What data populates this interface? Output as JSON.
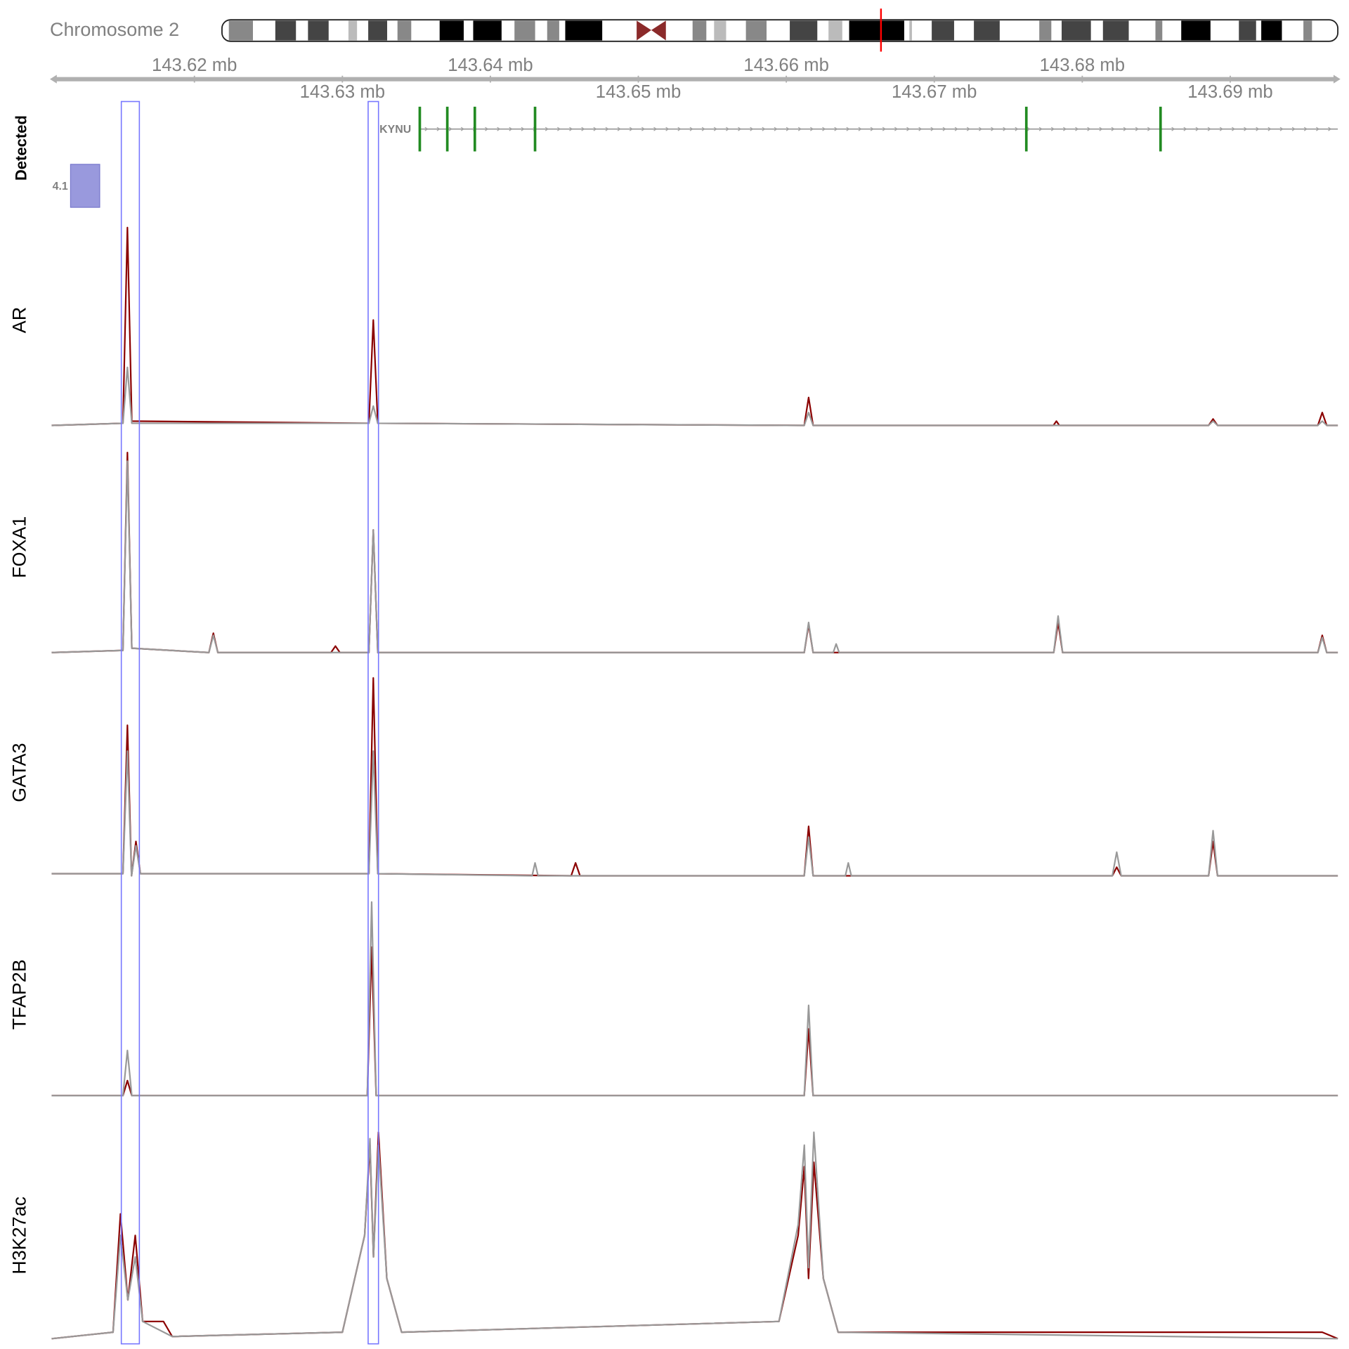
{
  "chromosome": {
    "label": "Chromosome 2"
  },
  "axis": {
    "xlim": [
      143.61035,
      143.69727
    ],
    "xticks": [
      {
        "value": 143.62,
        "label": "143.62 mb"
      },
      {
        "value": 143.63,
        "label": "143.63 mb"
      },
      {
        "value": 143.64,
        "label": "143.64 mb"
      },
      {
        "value": 143.65,
        "label": "143.65 mb"
      },
      {
        "value": 143.66,
        "label": "143.66 mb"
      },
      {
        "value": 143.67,
        "label": "143.67 mb"
      },
      {
        "value": 143.68,
        "label": "143.68 mb"
      },
      {
        "value": 143.69,
        "label": "143.69 mb"
      }
    ]
  },
  "gene_track": {
    "gene": "KYNU",
    "color": "#228b22",
    "exons": [
      143.63523,
      143.63709,
      143.63895,
      143.64302,
      143.67622,
      143.68529
    ]
  },
  "detected_track": {
    "title": "Detected",
    "label": "4.1",
    "color": "#9999dd",
    "region": [
      143.61163,
      143.6136
    ]
  },
  "highlights": [
    [
      143.61506,
      143.61628
    ],
    [
      143.63174,
      143.63244
    ]
  ],
  "chart_data": [
    {
      "type": "line",
      "title": "AR",
      "series": [
        {
          "color": "#8b0000",
          "x": [
            143.61035,
            143.61517,
            143.61547,
            143.61577,
            143.63179,
            143.63209,
            143.63239,
            143.66121,
            143.66151,
            143.66181,
            143.67805,
            143.67825,
            143.67845,
            143.68854,
            143.68884,
            143.68914,
            143.69592,
            143.69622,
            143.69652,
            143.69727
          ],
          "values": [
            0.01,
            0.02,
            0.93,
            0.03,
            0.02,
            0.5,
            0.02,
            0.01,
            0.14,
            0.01,
            0.01,
            0.03,
            0.01,
            0.01,
            0.04,
            0.01,
            0.01,
            0.07,
            0.01,
            0.01
          ]
        },
        {
          "color": "#999999",
          "x": [
            143.61035,
            143.61517,
            143.61547,
            143.61577,
            143.63179,
            143.63209,
            143.63239,
            143.66121,
            143.66151,
            143.66181,
            143.68854,
            143.68884,
            143.68914,
            143.69592,
            143.69622,
            143.69652,
            143.69727
          ],
          "values": [
            0.01,
            0.02,
            0.28,
            0.02,
            0.02,
            0.1,
            0.02,
            0.01,
            0.07,
            0.01,
            0.01,
            0.03,
            0.01,
            0.01,
            0.03,
            0.01,
            0.01
          ]
        }
      ]
    },
    {
      "type": "line",
      "title": "FOXA1",
      "series": [
        {
          "color": "#8b0000",
          "x": [
            143.61035,
            143.61517,
            143.61547,
            143.61577,
            143.62098,
            143.62128,
            143.62158,
            143.62923,
            143.62953,
            143.62983,
            143.63179,
            143.63209,
            143.63239,
            143.66121,
            143.66151,
            143.66181,
            143.67807,
            143.67837,
            143.67867,
            143.69592,
            143.69622,
            143.69652,
            143.69727
          ],
          "values": [
            0.01,
            0.02,
            0.94,
            0.03,
            0.01,
            0.1,
            0.01,
            0.01,
            0.04,
            0.01,
            0.01,
            0.58,
            0.01,
            0.01,
            0.14,
            0.01,
            0.01,
            0.15,
            0.01,
            0.01,
            0.09,
            0.01,
            0.01
          ]
        },
        {
          "color": "#999999",
          "x": [
            143.61035,
            143.61517,
            143.61547,
            143.61577,
            143.62098,
            143.62128,
            143.62158,
            143.63179,
            143.63209,
            143.63239,
            143.66121,
            143.66151,
            143.66181,
            143.66317,
            143.66337,
            143.66357,
            143.67807,
            143.67837,
            143.67867,
            143.69592,
            143.69622,
            143.69652,
            143.69727
          ],
          "values": [
            0.01,
            0.02,
            0.9,
            0.03,
            0.01,
            0.09,
            0.01,
            0.01,
            0.58,
            0.01,
            0.01,
            0.15,
            0.01,
            0.01,
            0.05,
            0.01,
            0.01,
            0.18,
            0.01,
            0.01,
            0.08,
            0.01,
            0.01
          ]
        }
      ]
    },
    {
      "type": "line",
      "title": "GATA3",
      "series": [
        {
          "color": "#8b0000",
          "x": [
            143.61035,
            143.61517,
            143.61547,
            143.61575,
            143.61605,
            143.61635,
            143.63179,
            143.63209,
            143.63239,
            143.64546,
            143.64576,
            143.64606,
            143.66121,
            143.66151,
            143.66181,
            143.68203,
            143.68233,
            143.68263,
            143.68854,
            143.68884,
            143.68914,
            143.69727
          ],
          "values": [
            0.03,
            0.03,
            0.72,
            0.02,
            0.18,
            0.03,
            0.03,
            0.94,
            0.03,
            0.02,
            0.08,
            0.02,
            0.02,
            0.25,
            0.02,
            0.02,
            0.06,
            0.02,
            0.02,
            0.18,
            0.02,
            0.02
          ]
        },
        {
          "color": "#999999",
          "x": [
            143.61035,
            143.61517,
            143.61547,
            143.61575,
            143.61605,
            143.61635,
            143.63179,
            143.63209,
            143.63239,
            143.64282,
            143.64302,
            143.64322,
            143.66121,
            143.66151,
            143.66181,
            143.66399,
            143.66419,
            143.66439,
            143.68203,
            143.68233,
            143.68263,
            143.68854,
            143.68884,
            143.68914,
            143.69727
          ],
          "values": [
            0.03,
            0.03,
            0.6,
            0.02,
            0.16,
            0.03,
            0.03,
            0.6,
            0.03,
            0.02,
            0.08,
            0.02,
            0.02,
            0.2,
            0.02,
            0.02,
            0.08,
            0.02,
            0.02,
            0.13,
            0.02,
            0.02,
            0.23,
            0.02,
            0.02
          ]
        }
      ]
    },
    {
      "type": "line",
      "title": "TFAP2B",
      "series": [
        {
          "color": "#8b0000",
          "x": [
            143.61035,
            143.61517,
            143.61547,
            143.61577,
            143.63168,
            143.63198,
            143.63228,
            143.66121,
            143.66151,
            143.66181,
            143.69727
          ],
          "values": [
            0.03,
            0.03,
            0.1,
            0.03,
            0.03,
            0.72,
            0.03,
            0.03,
            0.34,
            0.03,
            0.03
          ]
        },
        {
          "color": "#999999",
          "x": [
            143.61035,
            143.61517,
            143.61547,
            143.61577,
            143.63168,
            143.63198,
            143.63228,
            143.66121,
            143.66151,
            143.66181,
            143.69727
          ],
          "values": [
            0.03,
            0.03,
            0.24,
            0.03,
            0.03,
            0.93,
            0.03,
            0.03,
            0.45,
            0.03,
            0.03
          ]
        }
      ]
    },
    {
      "type": "line",
      "title": "H3K27ac",
      "series": [
        {
          "color": "#8b0000",
          "x": [
            143.61035,
            143.6145,
            143.615,
            143.6155,
            143.616,
            143.6165,
            143.61791,
            143.6185,
            143.63,
            143.6315,
            143.63186,
            143.6321,
            143.63244,
            143.633,
            143.634,
            143.6595,
            143.6608,
            143.66122,
            143.6615,
            143.66186,
            143.6625,
            143.6635,
            143.69622,
            143.69727
          ],
          "values": [
            0.02,
            0.05,
            0.6,
            0.2,
            0.5,
            0.1,
            0.1,
            0.03,
            0.05,
            0.5,
            0.92,
            0.4,
            0.98,
            0.3,
            0.05,
            0.1,
            0.5,
            0.82,
            0.3,
            0.84,
            0.3,
            0.05,
            0.05,
            0.02
          ]
        },
        {
          "color": "#999999",
          "x": [
            143.61035,
            143.6145,
            143.615,
            143.6155,
            143.616,
            143.6165,
            143.6185,
            143.63,
            143.6315,
            143.63186,
            143.6321,
            143.63244,
            143.633,
            143.634,
            143.6595,
            143.6608,
            143.66122,
            143.6615,
            143.66186,
            143.6625,
            143.6635,
            143.69727
          ],
          "values": [
            0.02,
            0.05,
            0.5,
            0.2,
            0.4,
            0.1,
            0.03,
            0.05,
            0.5,
            0.95,
            0.4,
            0.92,
            0.3,
            0.05,
            0.1,
            0.55,
            0.92,
            0.35,
            0.98,
            0.3,
            0.05,
            0.02
          ]
        }
      ]
    }
  ]
}
